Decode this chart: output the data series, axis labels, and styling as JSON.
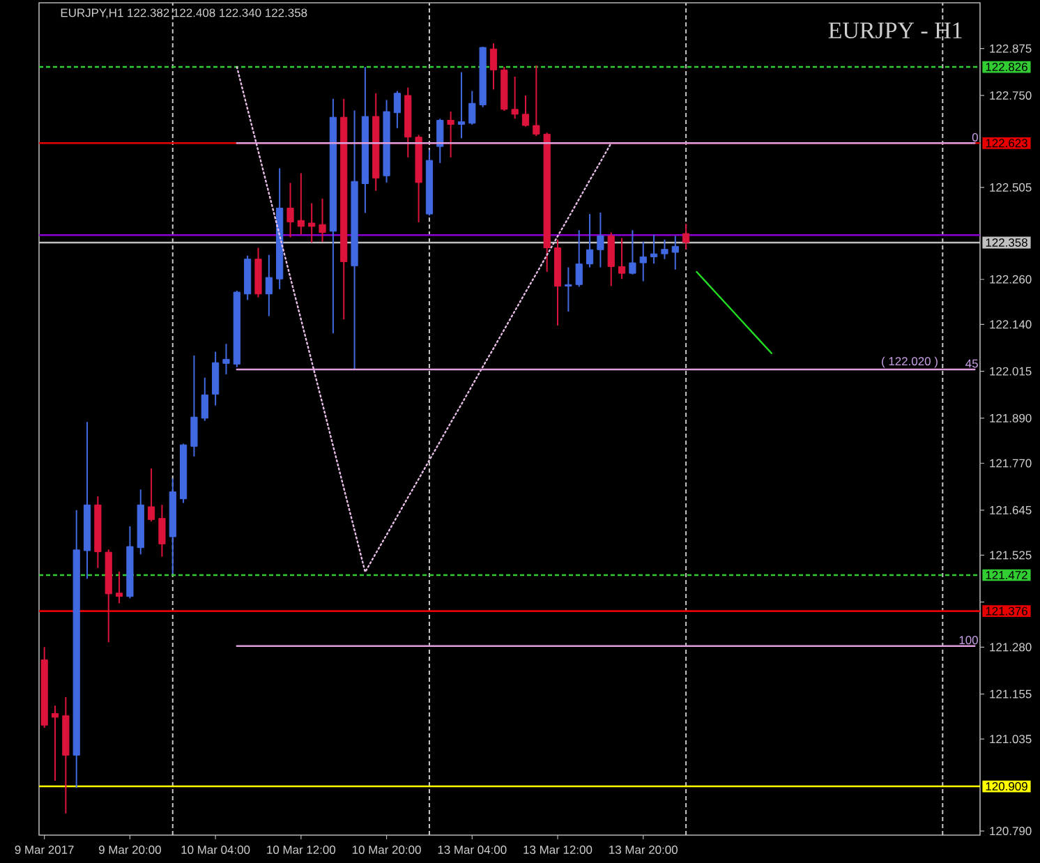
{
  "chart_data": {
    "type": "candlestick",
    "title": "EURJPY,H1 122.382 122.408 122.340 122.358",
    "subtitle": "EURJPY - H1",
    "categories": [
      "9 Mar 2017",
      null,
      null,
      null,
      null,
      null,
      null,
      null,
      "9 Mar 20:00",
      null,
      null,
      null,
      null,
      null,
      null,
      null,
      "10 Mar 04:00",
      null,
      null,
      null,
      null,
      null,
      null,
      null,
      "10 Mar 12:00",
      null,
      null,
      null,
      null,
      null,
      null,
      null,
      "10 Mar 20:00",
      null,
      null,
      null,
      null,
      null,
      null,
      null,
      "13 Mar 04:00",
      null,
      null,
      null,
      null,
      null,
      null,
      null,
      "13 Mar 12:00",
      null,
      null,
      null,
      null,
      null,
      null,
      null,
      "13 Mar 20:00",
      null,
      null,
      null,
      null,
      null,
      null,
      null,
      null,
      null,
      null,
      null,
      null,
      null,
      null,
      null,
      null,
      null,
      null,
      null,
      null,
      null,
      null,
      null,
      null,
      null,
      null,
      null,
      null,
      null,
      null,
      null
    ],
    "ohlc": [
      [
        121.246,
        121.28,
        121.065,
        121.072
      ],
      [
        121.103,
        121.124,
        120.924,
        121.093
      ],
      [
        121.097,
        121.147,
        120.837,
        120.992
      ],
      [
        120.992,
        121.645,
        120.905,
        121.539
      ],
      [
        121.537,
        121.88,
        121.462,
        121.659
      ],
      [
        121.659,
        121.682,
        121.491,
        121.534
      ],
      [
        121.533,
        121.54,
        121.293,
        121.422
      ],
      [
        121.424,
        121.481,
        121.397,
        121.415
      ],
      [
        121.415,
        121.602,
        121.41,
        121.548
      ],
      [
        121.545,
        121.7,
        121.527,
        121.659
      ],
      [
        121.654,
        121.756,
        121.615,
        121.62
      ],
      [
        121.623,
        121.659,
        121.521,
        121.555
      ],
      [
        121.574,
        121.729,
        121.475,
        121.694
      ],
      [
        121.675,
        121.822,
        121.664,
        121.819
      ],
      [
        121.815,
        122.057,
        121.788,
        121.893
      ],
      [
        121.89,
        121.998,
        121.883,
        121.952
      ],
      [
        121.954,
        122.067,
        121.924,
        122.038
      ],
      [
        122.036,
        122.088,
        122.007,
        122.047
      ],
      [
        122.034,
        122.23,
        122.026,
        122.226
      ],
      [
        122.221,
        122.323,
        122.205,
        122.314
      ],
      [
        122.314,
        122.344,
        122.212,
        122.221
      ],
      [
        122.221,
        122.325,
        122.162,
        122.265
      ],
      [
        122.261,
        122.556,
        122.234,
        122.45
      ],
      [
        122.45,
        122.517,
        122.372,
        122.413
      ],
      [
        122.417,
        122.543,
        122.379,
        122.401
      ],
      [
        122.41,
        122.463,
        122.358,
        122.401
      ],
      [
        122.406,
        122.475,
        122.36,
        122.385
      ],
      [
        122.388,
        122.741,
        122.116,
        122.692
      ],
      [
        122.692,
        122.741,
        122.153,
        122.307
      ],
      [
        122.296,
        122.71,
        122.02,
        122.521
      ],
      [
        122.515,
        122.826,
        122.437,
        122.694
      ],
      [
        122.694,
        122.756,
        122.496,
        122.53
      ],
      [
        122.536,
        122.738,
        122.518,
        122.707
      ],
      [
        122.704,
        122.762,
        122.663,
        122.756
      ],
      [
        122.75,
        122.771,
        122.585,
        122.639
      ],
      [
        122.639,
        122.645,
        122.412,
        122.518
      ],
      [
        122.434,
        122.605,
        122.43,
        122.577
      ],
      [
        122.614,
        122.688,
        122.57,
        122.684
      ],
      [
        122.684,
        122.707,
        122.585,
        122.673
      ],
      [
        122.673,
        122.812,
        122.636,
        122.68
      ],
      [
        122.676,
        122.762,
        122.672,
        122.729
      ],
      [
        122.725,
        122.88,
        122.719,
        122.878
      ],
      [
        122.874,
        122.889,
        122.766,
        122.818
      ],
      [
        122.818,
        122.826,
        122.709,
        122.713
      ],
      [
        122.713,
        122.8,
        122.688,
        122.7
      ],
      [
        122.7,
        122.75,
        122.667,
        122.67
      ],
      [
        122.67,
        122.83,
        122.642,
        122.647
      ],
      [
        122.647,
        122.651,
        122.28,
        122.344
      ],
      [
        122.344,
        122.366,
        122.137,
        122.242
      ],
      [
        122.242,
        122.292,
        122.174,
        122.246
      ],
      [
        122.246,
        122.391,
        122.24,
        122.301
      ],
      [
        122.301,
        122.434,
        122.292,
        122.339
      ],
      [
        122.339,
        122.438,
        122.292,
        122.376
      ],
      [
        122.376,
        122.385,
        122.242,
        122.294
      ],
      [
        122.294,
        122.37,
        122.261,
        122.276
      ],
      [
        122.276,
        122.391,
        122.273,
        122.304
      ],
      [
        122.304,
        122.36,
        122.255,
        122.32
      ],
      [
        122.32,
        122.379,
        122.302,
        122.328
      ],
      [
        122.328,
        122.366,
        122.314,
        122.34
      ],
      [
        122.332,
        122.376,
        122.286,
        122.348
      ],
      [
        122.382,
        122.408,
        122.34,
        122.358
      ],
      null,
      null,
      null,
      null,
      null,
      null,
      null,
      null,
      null,
      null,
      null,
      null,
      null,
      null,
      null,
      null,
      null,
      null,
      null,
      null,
      null,
      null,
      null,
      null,
      null,
      null,
      null
    ],
    "colors": [
      "#dc143c",
      "#dc143c",
      "#dc143c",
      "#4169e1",
      "#4169e1",
      "#dc143c",
      "#dc143c",
      "#dc143c",
      "#4169e1",
      "#4169e1",
      "#dc143c",
      "#dc143c",
      "#4169e1",
      "#4169e1",
      "#4169e1",
      "#4169e1",
      "#4169e1",
      "#4169e1",
      "#4169e1",
      "#4169e1",
      "#dc143c",
      "#4169e1",
      "#4169e1",
      "#dc143c",
      "#dc143c",
      "#dc143c",
      "#dc143c",
      "#4169e1",
      "#dc143c",
      "#4169e1",
      "#4169e1",
      "#dc143c",
      "#4169e1",
      "#4169e1",
      "#dc143c",
      "#dc143c",
      "#4169e1",
      "#4169e1",
      "#dc143c",
      "#4169e1",
      "#4169e1",
      "#4169e1",
      "#dc143c",
      "#dc143c",
      "#dc143c",
      "#dc143c",
      "#dc143c",
      "#dc143c",
      "#dc143c",
      "#4169e1",
      "#4169e1",
      "#4169e1",
      "#4169e1",
      "#dc143c",
      "#dc143c",
      "#4169e1",
      "#4169e1",
      "#4169e1",
      "#4169e1",
      "#4169e1",
      "#dc143c",
      null,
      null,
      null,
      null,
      null,
      null,
      null,
      null,
      null,
      null,
      null,
      null,
      null,
      null,
      null,
      null,
      null,
      null,
      null,
      null,
      null,
      null,
      null,
      null,
      null,
      null,
      null
    ],
    "series": [
      {
        "type": "line",
        "color": "#e6bee6",
        "line_style": "dotted",
        "values": [
          null,
          null,
          null,
          null,
          null,
          null,
          null,
          null,
          null,
          null,
          null,
          null,
          null,
          null,
          null,
          null,
          null,
          null,
          122.826,
          122.714,
          122.602,
          122.489,
          122.377,
          122.265,
          122.153,
          122.041,
          121.929,
          121.816,
          121.704,
          121.592,
          121.48,
          121.53,
          121.579,
          121.629,
          121.679,
          121.728,
          121.778,
          121.828,
          121.878,
          121.927,
          121.977,
          122.027,
          122.076,
          122.126,
          122.176,
          122.226,
          122.275,
          122.325,
          122.375,
          122.424,
          122.474,
          122.524,
          122.573,
          122.623,
          null,
          null,
          null,
          null,
          null,
          null,
          null,
          null,
          null,
          null,
          null,
          null,
          null,
          null,
          null,
          null,
          null,
          null,
          null,
          null,
          null,
          null,
          null,
          null,
          null,
          null,
          null,
          null,
          null,
          null,
          null,
          null,
          null,
          null
        ]
      },
      {
        "type": "line",
        "color": "#dda0dd",
        "values": [
          null,
          null,
          null,
          null,
          null,
          null,
          null,
          null,
          null,
          null,
          null,
          null,
          null,
          null,
          null,
          null,
          null,
          null,
          122.623,
          122.623,
          122.623,
          122.623,
          122.623,
          122.623,
          122.623,
          122.623,
          122.623,
          122.623,
          122.623,
          122.623,
          122.623,
          122.623,
          122.623,
          122.623,
          122.623,
          122.623,
          122.623,
          122.623,
          122.623,
          122.623,
          122.623,
          122.623,
          122.623,
          122.623,
          122.623,
          122.623,
          122.623,
          122.623,
          122.623,
          122.623,
          122.623,
          122.623,
          122.623,
          122.623,
          122.623,
          122.623,
          122.623,
          122.623,
          122.623,
          122.623,
          122.623,
          122.623,
          122.623,
          122.623,
          122.623,
          122.623,
          122.623,
          122.623,
          122.623,
          122.623,
          122.623,
          122.623,
          122.623,
          122.623,
          122.623,
          122.623,
          122.623,
          122.623,
          122.623,
          122.623,
          122.623,
          122.623,
          122.623,
          122.623,
          122.623,
          122.623,
          122.623,
          122.623
        ]
      },
      {
        "type": "line",
        "color": "#dda0dd",
        "values": [
          null,
          null,
          null,
          null,
          null,
          null,
          null,
          null,
          null,
          null,
          null,
          null,
          null,
          null,
          null,
          null,
          null,
          null,
          122.02,
          122.02,
          122.02,
          122.02,
          122.02,
          122.02,
          122.02,
          122.02,
          122.02,
          122.02,
          122.02,
          122.02,
          122.02,
          122.02,
          122.02,
          122.02,
          122.02,
          122.02,
          122.02,
          122.02,
          122.02,
          122.02,
          122.02,
          122.02,
          122.02,
          122.02,
          122.02,
          122.02,
          122.02,
          122.02,
          122.02,
          122.02,
          122.02,
          122.02,
          122.02,
          122.02,
          122.02,
          122.02,
          122.02,
          122.02,
          122.02,
          122.02,
          122.02,
          122.02,
          122.02,
          122.02,
          122.02,
          122.02,
          122.02,
          122.02,
          122.02,
          122.02,
          122.02,
          122.02,
          122.02,
          122.02,
          122.02,
          122.02,
          122.02,
          122.02,
          122.02,
          122.02,
          122.02,
          122.02,
          122.02,
          122.02,
          122.02,
          122.02,
          122.02,
          122.02
        ]
      },
      {
        "type": "line",
        "color": "#dda0dd",
        "values": [
          null,
          null,
          null,
          null,
          null,
          null,
          null,
          null,
          null,
          null,
          null,
          null,
          null,
          null,
          null,
          null,
          null,
          null,
          121.283,
          121.283,
          121.283,
          121.283,
          121.283,
          121.283,
          121.283,
          121.283,
          121.283,
          121.283,
          121.283,
          121.283,
          121.283,
          121.283,
          121.283,
          121.283,
          121.283,
          121.283,
          121.283,
          121.283,
          121.283,
          121.283,
          121.283,
          121.283,
          121.283,
          121.283,
          121.283,
          121.283,
          121.283,
          121.283,
          121.283,
          121.283,
          121.283,
          121.283,
          121.283,
          121.283,
          121.283,
          121.283,
          121.283,
          121.283,
          121.283,
          121.283,
          121.283,
          121.283,
          121.283,
          121.283,
          121.283,
          121.283,
          121.283,
          121.283,
          121.283,
          121.283,
          121.283,
          121.283,
          121.283,
          121.283,
          121.283,
          121.283,
          121.283,
          121.283,
          121.283,
          121.283,
          121.283,
          121.283,
          121.283,
          121.283,
          121.283,
          121.283,
          121.283,
          121.283
        ]
      },
      {
        "type": "line",
        "color": "#22dd22",
        "values": [
          null,
          null,
          null,
          null,
          null,
          null,
          null,
          null,
          null,
          null,
          null,
          null,
          null,
          null,
          null,
          null,
          null,
          null,
          null,
          null,
          null,
          null,
          null,
          null,
          null,
          null,
          null,
          null,
          null,
          null,
          null,
          null,
          null,
          null,
          null,
          null,
          null,
          null,
          null,
          null,
          null,
          null,
          null,
          null,
          null,
          null,
          null,
          null,
          null,
          null,
          null,
          null,
          null,
          null,
          null,
          null,
          null,
          null,
          null,
          null,
          null,
          122.28,
          122.249,
          122.218,
          122.187,
          122.156,
          122.125,
          122.094,
          122.063,
          null,
          null,
          null,
          null,
          null,
          null,
          null,
          null,
          null,
          null,
          null,
          null,
          null,
          null,
          null,
          null,
          null,
          null,
          null
        ]
      }
    ],
    "ref_lines": [
      {
        "axis": "y",
        "value": 122.826,
        "label": "122.826",
        "color": "#32cd32",
        "line_style": "dashed"
      },
      {
        "axis": "y",
        "value": 122.623,
        "label": "122.623",
        "color": "#e60000"
      },
      {
        "axis": "y",
        "value": 122.378,
        "color": "#8b00d0"
      },
      {
        "axis": "y",
        "value": 122.358,
        "label": "122.358",
        "color": "#c0c0c0"
      },
      {
        "axis": "y",
        "value": 121.472,
        "label": "121.472",
        "color": "#32cd32",
        "line_style": "dashed"
      },
      {
        "axis": "y",
        "value": 121.376,
        "label": "121.376",
        "color": "#e60000"
      },
      {
        "axis": "y",
        "value": 120.909,
        "label": "120.909",
        "color": "#ffff00"
      }
    ],
    "annotations": [
      {
        "text": "0",
        "y": 122.623
      },
      {
        "text": "( 122.020 )",
        "y": 122.02
      },
      {
        "text": "45",
        "y": 122.02
      },
      {
        "text": "100",
        "y": 121.283
      }
    ],
    "ylim": [
      120.779,
      122.997
    ],
    "yticks": [
      122.875,
      {
        "value": 122.75,
        "label": "122.750"
      },
      122.505,
      {
        "value": 122.26,
        "label": "122.260"
      },
      {
        "value": 122.14,
        "label": "122.140"
      },
      122.015,
      {
        "value": 121.89,
        "label": "121.890"
      },
      {
        "value": 121.77,
        "label": "121.770"
      },
      121.645,
      121.525,
      {
        "value": 121.4,
        "label": null
      },
      {
        "value": 121.28,
        "label": "121.280"
      },
      121.155,
      121.035,
      {
        "value": 120.79,
        "label": "120.790"
      }
    ],
    "grid": "x"
  }
}
